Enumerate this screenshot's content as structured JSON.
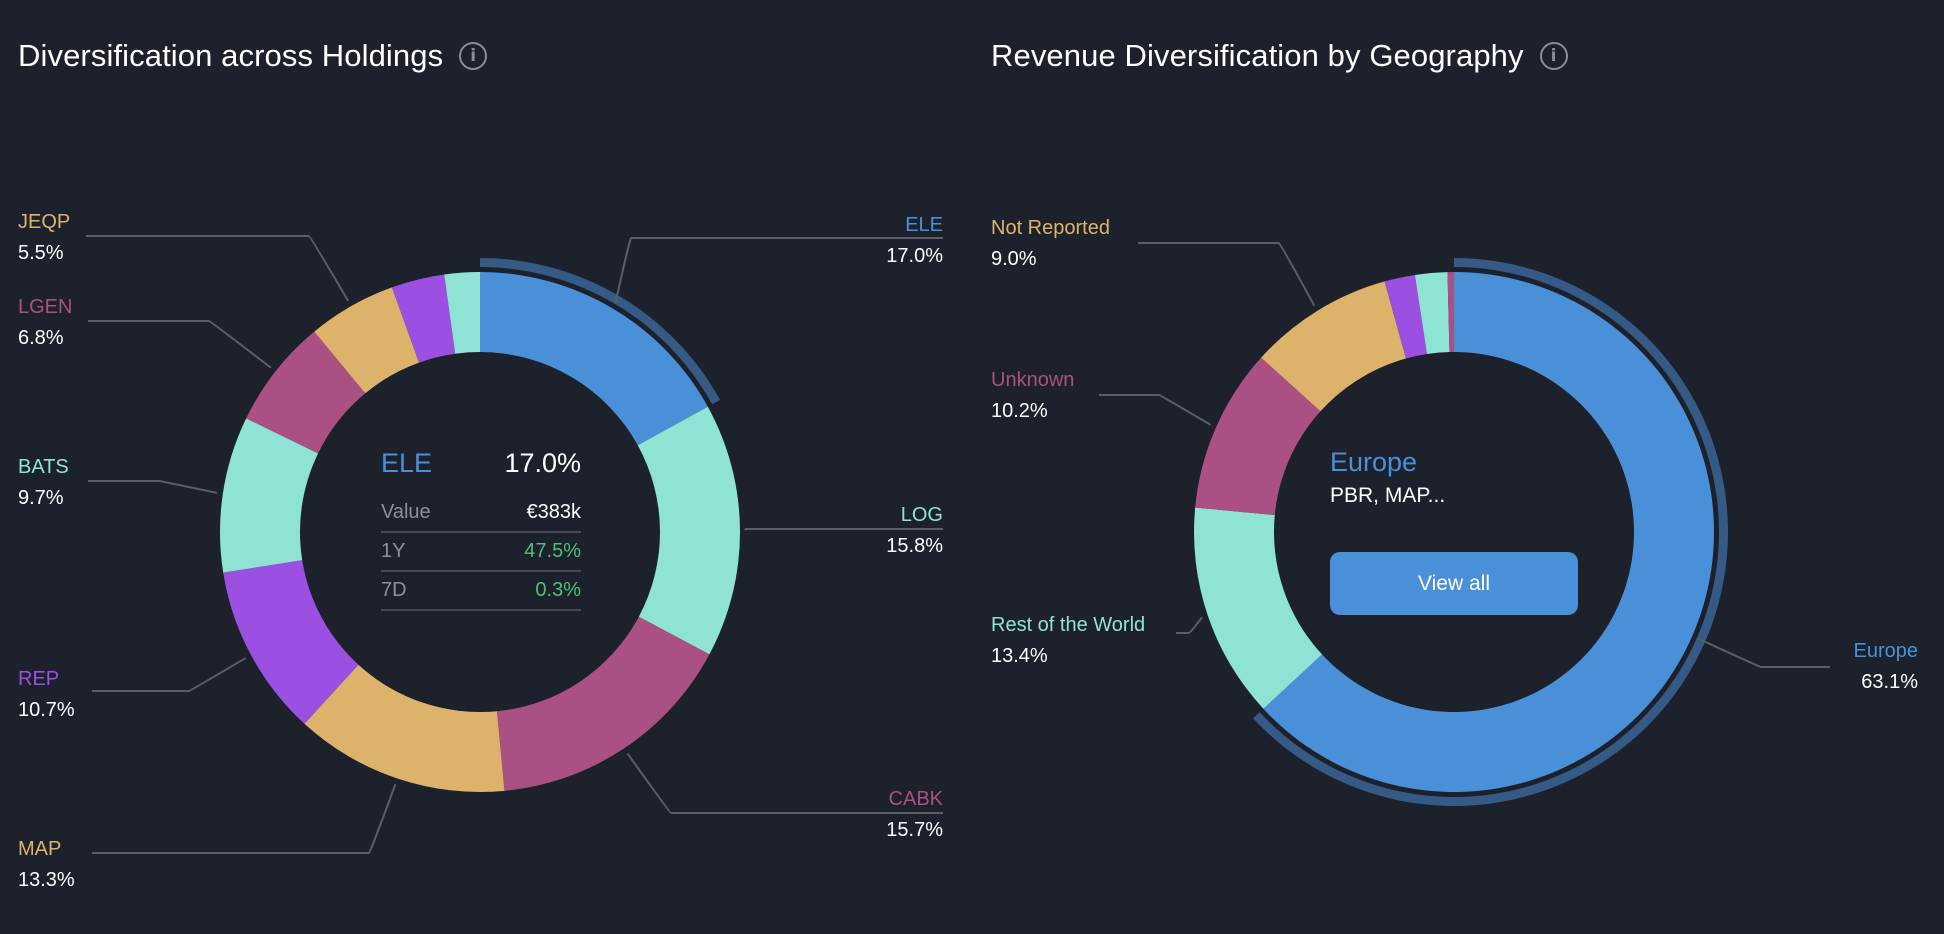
{
  "panels": [
    {
      "title": "Diversification across Holdings",
      "info_icon": "info-icon",
      "center": {
        "ticker": "ELE",
        "percent": "17.0%",
        "rows": [
          {
            "label": "Value",
            "value": "€383k",
            "positive": false
          },
          {
            "label": "1Y",
            "value": "47.5%",
            "positive": true
          },
          {
            "label": "7D",
            "value": "0.3%",
            "positive": true
          }
        ]
      }
    },
    {
      "title": "Revenue Diversification by Geography",
      "info_icon": "info-icon",
      "center": {
        "region": "Europe",
        "companies": "PBR, MAP...",
        "button": "View all"
      }
    }
  ],
  "colors": {
    "blue": "#4a90d9",
    "teal": "#8fe3d5",
    "pink": "#ab5083",
    "gold": "#ddb36c",
    "purple": "#9b50e2",
    "highlight_ring": "#355a85",
    "positive": "#4fbf7a",
    "background": "#1c212b"
  },
  "chart_data": [
    {
      "type": "pie",
      "title": "Diversification across Holdings",
      "donut": true,
      "highlighted": "ELE",
      "slices": [
        {
          "label": "ELE",
          "value": 17.0,
          "display": "17.0%",
          "color": "#4a90d9",
          "labeled": true
        },
        {
          "label": "LOG",
          "value": 15.8,
          "display": "15.8%",
          "color": "#8fe3d5",
          "labeled": true
        },
        {
          "label": "CABK",
          "value": 15.7,
          "display": "15.7%",
          "color": "#ab5083",
          "labeled": true
        },
        {
          "label": "MAP",
          "value": 13.3,
          "display": "13.3%",
          "color": "#ddb36c",
          "labeled": true
        },
        {
          "label": "REP",
          "value": 10.7,
          "display": "10.7%",
          "color": "#9b50e2",
          "labeled": true
        },
        {
          "label": "BATS",
          "value": 9.7,
          "display": "9.7%",
          "color": "#8fe3d5",
          "labeled": true
        },
        {
          "label": "LGEN",
          "value": 6.8,
          "display": "6.8%",
          "color": "#ab5083",
          "labeled": true
        },
        {
          "label": "JEQP",
          "value": 5.5,
          "display": "5.5%",
          "color": "#ddb36c",
          "labeled": true
        },
        {
          "label": "",
          "value": 3.3,
          "display": "",
          "color": "#9b50e2",
          "labeled": false
        },
        {
          "label": "",
          "value": 2.2,
          "display": "",
          "color": "#8fe3d5",
          "labeled": false
        }
      ]
    },
    {
      "type": "pie",
      "title": "Revenue Diversification by Geography",
      "donut": true,
      "highlighted": "Europe",
      "slices": [
        {
          "label": "Europe",
          "value": 63.1,
          "display": "63.1%",
          "color": "#4a90d9",
          "labeled": true
        },
        {
          "label": "Rest of the World",
          "value": 13.4,
          "display": "13.4%",
          "color": "#8fe3d5",
          "labeled": true
        },
        {
          "label": "Unknown",
          "value": 10.2,
          "display": "10.2%",
          "color": "#ab5083",
          "labeled": true
        },
        {
          "label": "Not Reported",
          "value": 9.0,
          "display": "9.0%",
          "color": "#ddb36c",
          "labeled": true
        },
        {
          "label": "",
          "value": 1.9,
          "display": "",
          "color": "#9b50e2",
          "labeled": false
        },
        {
          "label": "",
          "value": 2.0,
          "display": "",
          "color": "#8fe3d5",
          "labeled": false
        },
        {
          "label": "",
          "value": 0.4,
          "display": "",
          "color": "#ab5083",
          "labeled": false
        }
      ]
    }
  ]
}
